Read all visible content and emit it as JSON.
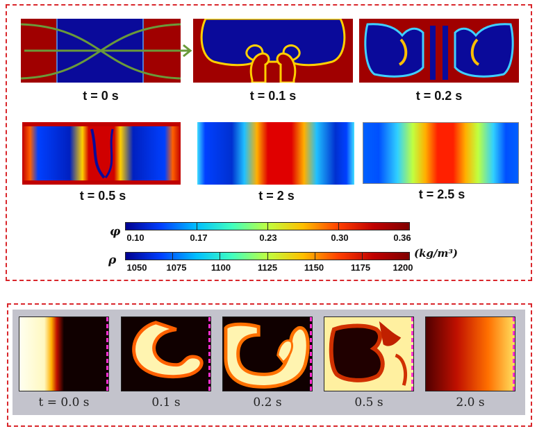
{
  "top_panels": {
    "labels": [
      "t = 0 s",
      "t = 0.1 s",
      "t = 0.2 s",
      "t = 0.5 s",
      "t = 2 s",
      "t = 2.5 s"
    ]
  },
  "colorbars": {
    "phi": {
      "symbol": "φ",
      "ticks": [
        "0.10",
        "0.17",
        "0.23",
        "0.30",
        "0.36"
      ]
    },
    "rho": {
      "symbol": "ρ",
      "unit": "(kg/m³)",
      "ticks": [
        "1050",
        "1075",
        "1100",
        "1125",
        "1150",
        "1175",
        "1200"
      ]
    }
  },
  "bottom_panels": {
    "labels": [
      "t = 0.0 s",
      "0.1 s",
      "0.2 s",
      "0.5 s",
      "2.0 s"
    ]
  },
  "colors": {
    "frame": "#d9262b",
    "jet_dark_red": "#a00000",
    "jet_dark_blue": "#0a0a9a",
    "arrow_green": "#6a9a3a",
    "bottom_bg": "#c3c3cc",
    "edge_dash": "#ff2fd0"
  }
}
